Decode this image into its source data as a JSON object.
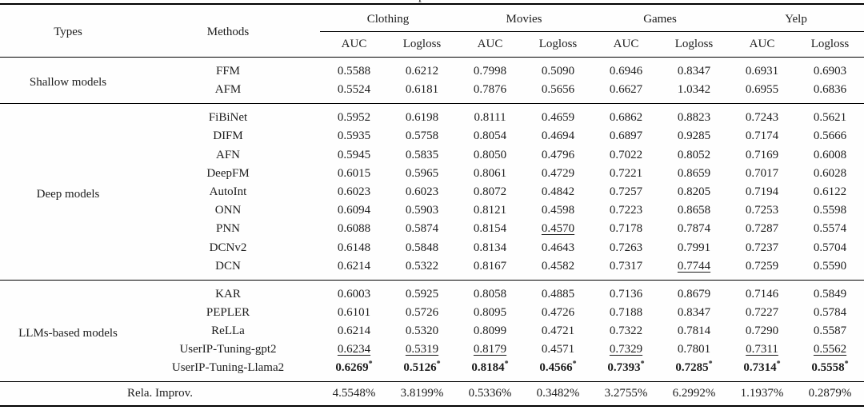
{
  "colors": {
    "ink": "#1c1c1c",
    "rule": "#000000",
    "background": "#fefefe"
  },
  "table": {
    "top_remnant": "p",
    "star_glyph": "*",
    "header": {
      "types_label": "Types",
      "methods_label": "Methods",
      "groups": [
        {
          "label": "Clothing"
        },
        {
          "label": "Movies"
        },
        {
          "label": "Games"
        },
        {
          "label": "Yelp"
        }
      ],
      "metrics": [
        "AUC",
        "Logloss"
      ]
    },
    "sections": [
      {
        "type_label": "Shallow models",
        "rows": [
          {
            "method": "FFM",
            "values": [
              "0.5588",
              "0.6212",
              "0.7998",
              "0.5090",
              "0.6946",
              "0.8347",
              "0.6931",
              "0.6903"
            ]
          },
          {
            "method": "AFM",
            "values": [
              "0.5524",
              "0.6181",
              "0.7876",
              "0.5656",
              "0.6627",
              "1.0342",
              "0.6955",
              "0.6836"
            ]
          }
        ]
      },
      {
        "type_label": "Deep models",
        "rows": [
          {
            "method": "FiBiNet",
            "values": [
              "0.5952",
              "0.6198",
              "0.8111",
              "0.4659",
              "0.6862",
              "0.8823",
              "0.7243",
              "0.5621"
            ]
          },
          {
            "method": "DIFM",
            "values": [
              "0.5935",
              "0.5758",
              "0.8054",
              "0.4694",
              "0.6897",
              "0.9285",
              "0.7174",
              "0.5666"
            ]
          },
          {
            "method": "AFN",
            "values": [
              "0.5945",
              "0.5835",
              "0.8050",
              "0.4796",
              "0.7022",
              "0.8052",
              "0.7169",
              "0.6008"
            ]
          },
          {
            "method": "DeepFM",
            "values": [
              "0.6015",
              "0.5965",
              "0.8061",
              "0.4729",
              "0.7221",
              "0.8659",
              "0.7017",
              "0.6028"
            ]
          },
          {
            "method": "AutoInt",
            "values": [
              "0.6023",
              "0.6023",
              "0.8072",
              "0.4842",
              "0.7257",
              "0.8205",
              "0.7194",
              "0.6122"
            ]
          },
          {
            "method": "ONN",
            "values": [
              "0.6094",
              "0.5903",
              "0.8121",
              "0.4598",
              "0.7223",
              "0.8658",
              "0.7253",
              "0.5598"
            ]
          },
          {
            "method": "PNN",
            "values": [
              "0.6088",
              "0.5874",
              "0.8154",
              "0.4570",
              "0.7178",
              "0.7874",
              "0.7287",
              "0.5574"
            ],
            "underline": [
              3
            ]
          },
          {
            "method": "DCNv2",
            "values": [
              "0.6148",
              "0.5848",
              "0.8134",
              "0.4643",
              "0.7263",
              "0.7991",
              "0.7237",
              "0.5704"
            ]
          },
          {
            "method": "DCN",
            "values": [
              "0.6214",
              "0.5322",
              "0.8167",
              "0.4582",
              "0.7317",
              "0.7744",
              "0.7259",
              "0.5590"
            ],
            "underline": [
              5
            ]
          }
        ]
      },
      {
        "type_label": "LLMs-based models",
        "rows": [
          {
            "method": "KAR",
            "values": [
              "0.6003",
              "0.5925",
              "0.8058",
              "0.4885",
              "0.7136",
              "0.8679",
              "0.7146",
              "0.5849"
            ]
          },
          {
            "method": "PEPLER",
            "values": [
              "0.6101",
              "0.5726",
              "0.8095",
              "0.4726",
              "0.7188",
              "0.8347",
              "0.7227",
              "0.5784"
            ]
          },
          {
            "method": "ReLLa",
            "values": [
              "0.6214",
              "0.5320",
              "0.8099",
              "0.4721",
              "0.7322",
              "0.7814",
              "0.7290",
              "0.5587"
            ]
          },
          {
            "method": "UserIP-Tuning-gpt2",
            "values": [
              "0.6234",
              "0.5319",
              "0.8179",
              "0.4571",
              "0.7329",
              "0.7801",
              "0.7311",
              "0.5562"
            ],
            "underline": [
              0,
              1,
              2,
              4,
              6,
              7
            ]
          },
          {
            "method": "UserIP-Tuning-Llama2",
            "values": [
              "0.6269",
              "0.5126",
              "0.8184",
              "0.4566",
              "0.7393",
              "0.7285",
              "0.7314",
              "0.5558"
            ],
            "bold": true,
            "star": true
          }
        ]
      }
    ],
    "footer": {
      "label": "Rela. Improv.",
      "values": [
        "4.5548%",
        "3.8199%",
        "0.5336%",
        "0.3482%",
        "3.2755%",
        "6.2992%",
        "1.1937%",
        "0.2879%"
      ]
    }
  }
}
